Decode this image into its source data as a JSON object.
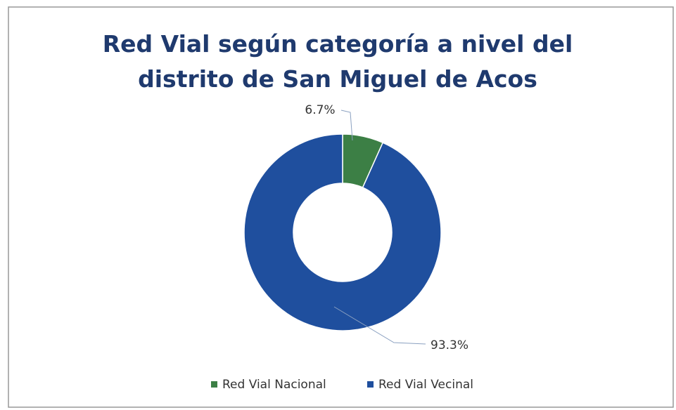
{
  "chart_data": {
    "type": "donut",
    "title": "Red Vial según categoría a nivel del distrito de San Miguel de Acos",
    "categories": [
      "Red Vial Nacional",
      "Red Vial Vecinal"
    ],
    "values": [
      6.7,
      93.3
    ],
    "value_labels": [
      "6.7%",
      "93.3%"
    ],
    "colors": [
      "#3c7f45",
      "#1f4f9e"
    ],
    "legend": "bottom"
  }
}
